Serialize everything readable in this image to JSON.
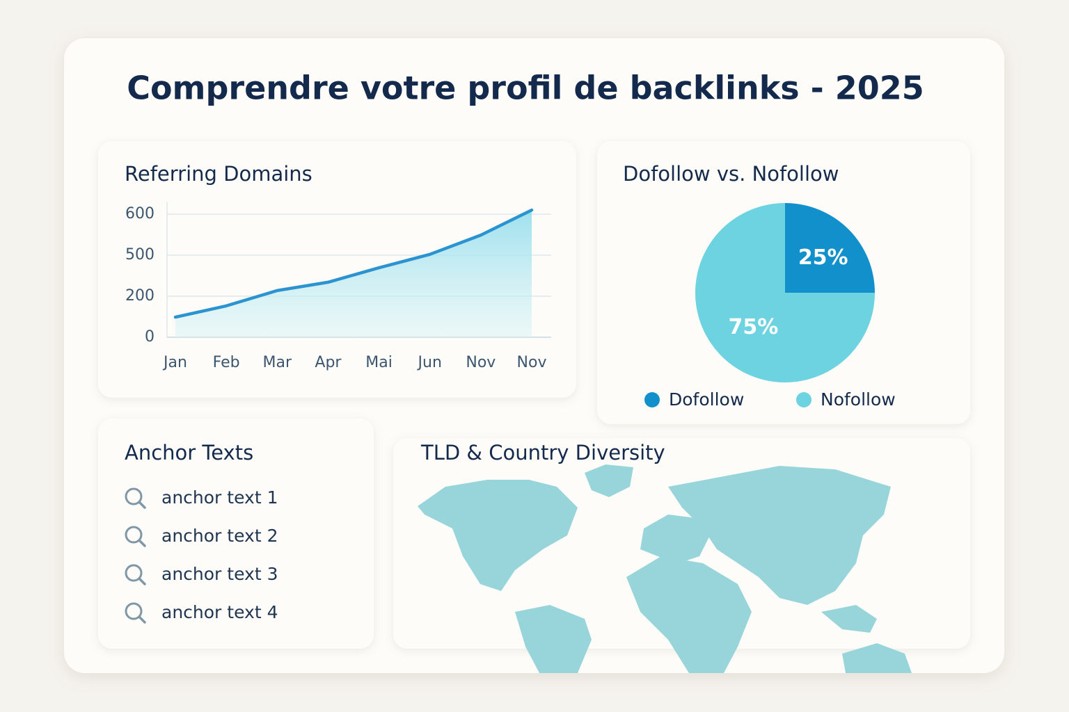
{
  "title": "Comprendre votre profil de backlinks - 2025",
  "chart_data": [
    {
      "type": "line",
      "title": "Referring Domains",
      "categories": [
        "Jan",
        "Feb",
        "Mar",
        "Apr",
        "Mai",
        "Jun",
        "Nov",
        "Nov"
      ],
      "values": [
        98,
        153,
        241,
        302,
        408,
        502,
        549,
        610
      ],
      "color": "#2a93d0",
      "ylim": [
        0,
        630
      ],
      "yticks": [
        0,
        200,
        500,
        600
      ],
      "grid": true
    },
    {
      "type": "pie",
      "title": "Dofollow vs. Nofollow",
      "categories": [
        "Dofollow",
        "Nofollow"
      ],
      "values": [
        25,
        75
      ],
      "value_labels": [
        "25%",
        "75%"
      ],
      "colors": [
        "#1190cc",
        "#6dd3e0"
      ],
      "legend": "bottom"
    }
  ],
  "anchor_texts": {
    "title": "Anchor Texts",
    "items": [
      "anchor text 1",
      "anchor text 2",
      "anchor text 3",
      "anchor text 4"
    ]
  },
  "map": {
    "title": "TLD & Country Diversity"
  }
}
